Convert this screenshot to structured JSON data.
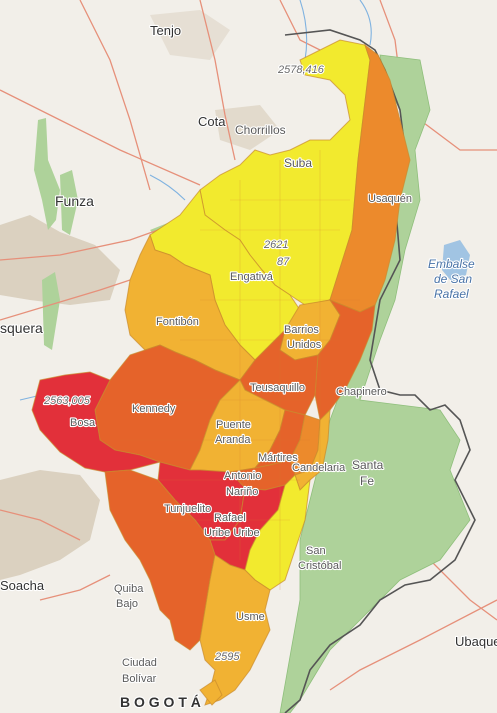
{
  "map": {
    "places": {
      "tenjo": "Tenjo",
      "cota": "Cota",
      "chorrillos": "Chorrillos",
      "suba": "Suba",
      "funza": "Funza",
      "mosquera": "squera",
      "soacha": "Soacha",
      "ubaque": "Ubaque",
      "bogota": "B O G O T Á"
    },
    "reservoir": [
      "Embalse",
      "de San",
      "Rafael"
    ],
    "elevations": [
      "2578,416",
      "2621",
      "87",
      "2563,005",
      "2595"
    ],
    "localities": {
      "usaquen": "Usaquén",
      "engativa": "Engativá",
      "fontibon": "Fontibón",
      "barrios_unidos": [
        "Barrios",
        "Unidos"
      ],
      "teusaquillo": "Teusaquillo",
      "chapinero": "Chapinero",
      "kennedy": "Kennedy",
      "bosa": "Bosa",
      "puente_aranda": [
        "Puente",
        "Aranda"
      ],
      "martires": "Mártires",
      "candelaria": "Candelaria",
      "santa_fe": [
        "Santa",
        "Fe"
      ],
      "antonio_narino": [
        "Antonio",
        "Nariño"
      ],
      "tunjuelito": "Tunjuelito",
      "rafael_uribe": [
        "Rafael",
        "Uribe Uribe"
      ],
      "san_cristobal": [
        "San",
        "Cristóbal"
      ],
      "usme": "Usme",
      "ciudad_bolivar": [
        "Ciudad",
        "Bolívar"
      ],
      "quiba_bajo": [
        "Quiba",
        "Bajo"
      ]
    },
    "colors": {
      "yellow": "#f2ea2e",
      "light_orange": "#f1b233",
      "orange": "#ec8a2c",
      "dark_orange": "#e5632a",
      "red": "#e2303a",
      "park_green": "#aed29a",
      "urban_beige": "#d8cdbb",
      "road": "#e6907a",
      "water": "#7fb2e0"
    }
  }
}
